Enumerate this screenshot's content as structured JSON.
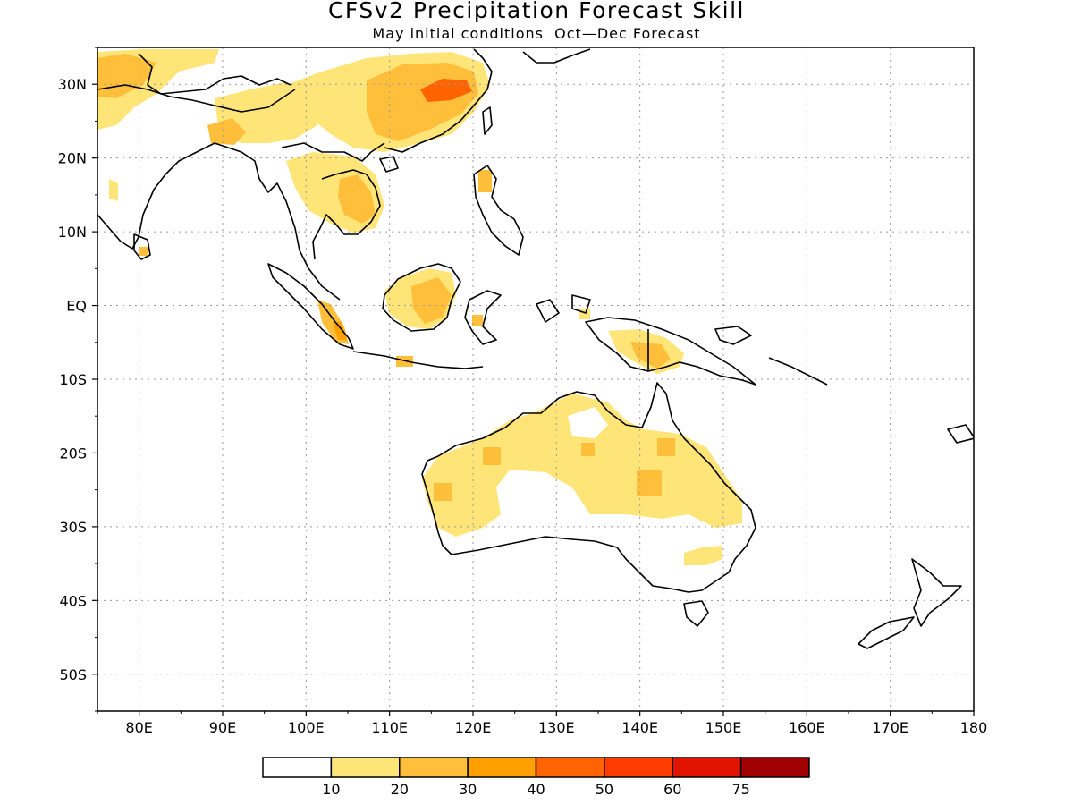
{
  "title": "CFSv2 Precipitation Forecast Skill",
  "subtitle": "May initial conditions  Oct—Dec Forecast",
  "map": {
    "lon_range": [
      75,
      180
    ],
    "lat_range": [
      -55,
      35
    ],
    "lon_ticks": [
      {
        "value": 80,
        "label": "80E"
      },
      {
        "value": 90,
        "label": "90E"
      },
      {
        "value": 100,
        "label": "100E"
      },
      {
        "value": 110,
        "label": "110E"
      },
      {
        "value": 120,
        "label": "120E"
      },
      {
        "value": 130,
        "label": "130E"
      },
      {
        "value": 140,
        "label": "140E"
      },
      {
        "value": 150,
        "label": "150E"
      },
      {
        "value": 160,
        "label": "160E"
      },
      {
        "value": 170,
        "label": "170E"
      },
      {
        "value": 180,
        "label": "180"
      }
    ],
    "lat_ticks": [
      {
        "value": 30,
        "label": "30N"
      },
      {
        "value": 20,
        "label": "20N"
      },
      {
        "value": 10,
        "label": "10N"
      },
      {
        "value": 0,
        "label": "EQ"
      },
      {
        "value": -10,
        "label": "10S"
      },
      {
        "value": -20,
        "label": "20S"
      },
      {
        "value": -30,
        "label": "30S"
      },
      {
        "value": -40,
        "label": "40S"
      },
      {
        "value": -50,
        "label": "50S"
      }
    ],
    "grid": true
  },
  "colorbar": {
    "colors": [
      "#ffffff",
      "#ffe478",
      "#ffbf3a",
      "#ffa000",
      "#ff6400",
      "#ff3c00",
      "#e01400",
      "#a00000"
    ],
    "labels": [
      "10",
      "20",
      "30",
      "40",
      "50",
      "60",
      "75"
    ]
  }
}
